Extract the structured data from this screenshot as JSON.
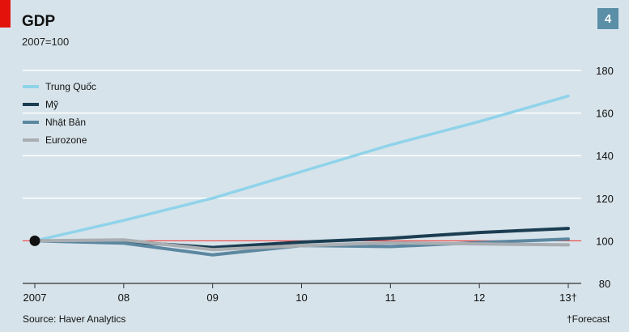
{
  "header": {
    "title": "GDP",
    "subtitle": "2007=100",
    "badge": "4"
  },
  "footer": {
    "source": "Source: Haver Analytics",
    "footnote": "†Forecast"
  },
  "chart_data": {
    "type": "line",
    "title": "GDP",
    "subtitle": "2007=100",
    "x": [
      "2007",
      "08",
      "09",
      "10",
      "11",
      "12",
      "13†"
    ],
    "ylim": [
      80,
      180
    ],
    "yticks": [
      80,
      100,
      120,
      140,
      160,
      180
    ],
    "grid": true,
    "y_axis_side": "right",
    "legend_position": "top-left",
    "baseline": 100,
    "series": [
      {
        "name": "Trung Quốc",
        "color": "#8fd3ea",
        "values": [
          100,
          109.6,
          120,
          132.5,
          145,
          156,
          168
        ]
      },
      {
        "name": "Mỹ",
        "color": "#1b3d52",
        "values": [
          100,
          99.7,
          96.9,
          99.4,
          101.2,
          103.9,
          105.8
        ]
      },
      {
        "name": "Nhật Bản",
        "color": "#5c87a0",
        "values": [
          100,
          98.9,
          93.4,
          97.8,
          97.3,
          99.2,
          100.8
        ]
      },
      {
        "name": "Eurozone",
        "color": "#a9aeb2",
        "values": [
          100,
          100.4,
          95.9,
          97.7,
          99.1,
          98.5,
          98.1
        ]
      }
    ],
    "colors": {
      "baseline": "#e84a4a",
      "grid": "#ffffff",
      "axis": "#333333",
      "marker": "#111111"
    }
  }
}
